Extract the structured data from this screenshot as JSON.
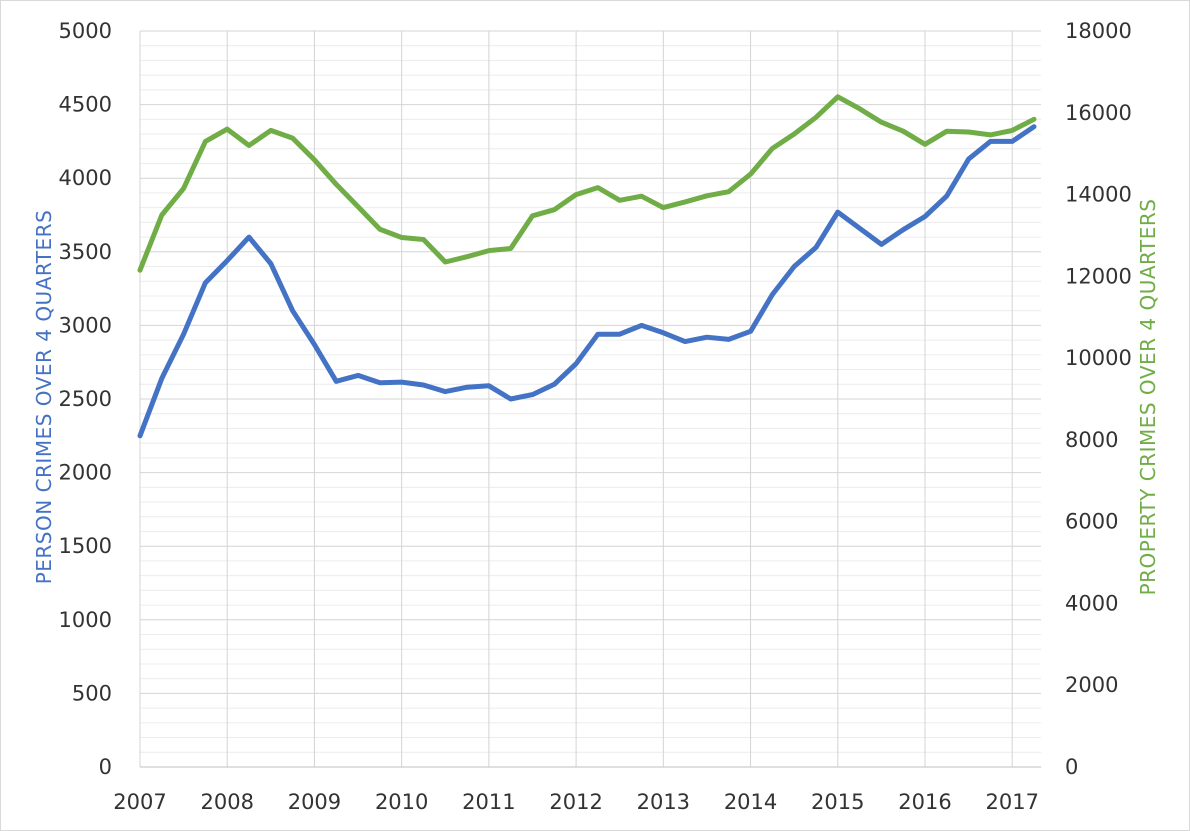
{
  "chart_data": {
    "type": "line",
    "xlabel": "",
    "x_ticks": [
      "2007",
      "2008",
      "2009",
      "2010",
      "2011",
      "2012",
      "2013",
      "2014",
      "2015",
      "2016",
      "2017"
    ],
    "x_range": [
      2007.0,
      2017.33
    ],
    "ylabel_left": "PERSON CRIMES OVER 4 QUARTERS",
    "ylabel_right": "PROPERTY CRIMES OVER 4 QUARTERS",
    "ylim_left": [
      0,
      5000
    ],
    "ylim_right": [
      0,
      18000
    ],
    "y_ticks_left": [
      "0",
      "500",
      "1000",
      "1500",
      "2000",
      "2500",
      "3000",
      "3500",
      "4000",
      "4500",
      "5000"
    ],
    "y_ticks_right": [
      "0",
      "2000",
      "4000",
      "6000",
      "8000",
      "10000",
      "12000",
      "14000",
      "16000",
      "18000"
    ],
    "grid": true,
    "legend": "none",
    "colors": {
      "person": "#4472c4",
      "property": "#70ad47",
      "axis_text": "#333333"
    },
    "x_quarters": [
      2007.0,
      2007.25,
      2007.5,
      2007.75,
      2008.0,
      2008.25,
      2008.5,
      2008.75,
      2009.0,
      2009.25,
      2009.5,
      2009.75,
      2010.0,
      2010.25,
      2010.5,
      2010.75,
      2011.0,
      2011.25,
      2011.5,
      2011.75,
      2012.0,
      2012.25,
      2012.5,
      2012.75,
      2013.0,
      2013.25,
      2013.5,
      2013.75,
      2014.0,
      2014.25,
      2014.5,
      2014.75,
      2015.0,
      2015.25,
      2015.5,
      2015.75,
      2016.0,
      2016.25,
      2016.5,
      2016.75,
      2017.0,
      2017.25
    ],
    "series": [
      {
        "axis": "left",
        "values": [
          2250,
          2640,
          2940,
          3290,
          3440,
          3600,
          3420,
          3100,
          2870,
          2620,
          2660,
          2610,
          2615,
          2595,
          2550,
          2580,
          2590,
          2500,
          2530,
          2600,
          2740,
          2940,
          2940,
          3000,
          2950,
          2890,
          2920,
          2905,
          2960,
          3210,
          3400,
          3530,
          3770,
          3660,
          3550,
          3650,
          3740,
          3880,
          4130,
          4250,
          4250,
          4350
        ]
      },
      {
        "axis": "right",
        "values": [
          12150,
          13500,
          14150,
          15300,
          15600,
          15200,
          15570,
          15380,
          14850,
          14250,
          13700,
          13150,
          12950,
          12900,
          12350,
          12480,
          12630,
          12680,
          13480,
          13630,
          14000,
          14170,
          13860,
          13960,
          13680,
          13820,
          13970,
          14070,
          14500,
          15130,
          15480,
          15890,
          16390,
          16100,
          15770,
          15550,
          15230,
          15550,
          15530,
          15460,
          15570,
          15840
        ]
      }
    ]
  }
}
